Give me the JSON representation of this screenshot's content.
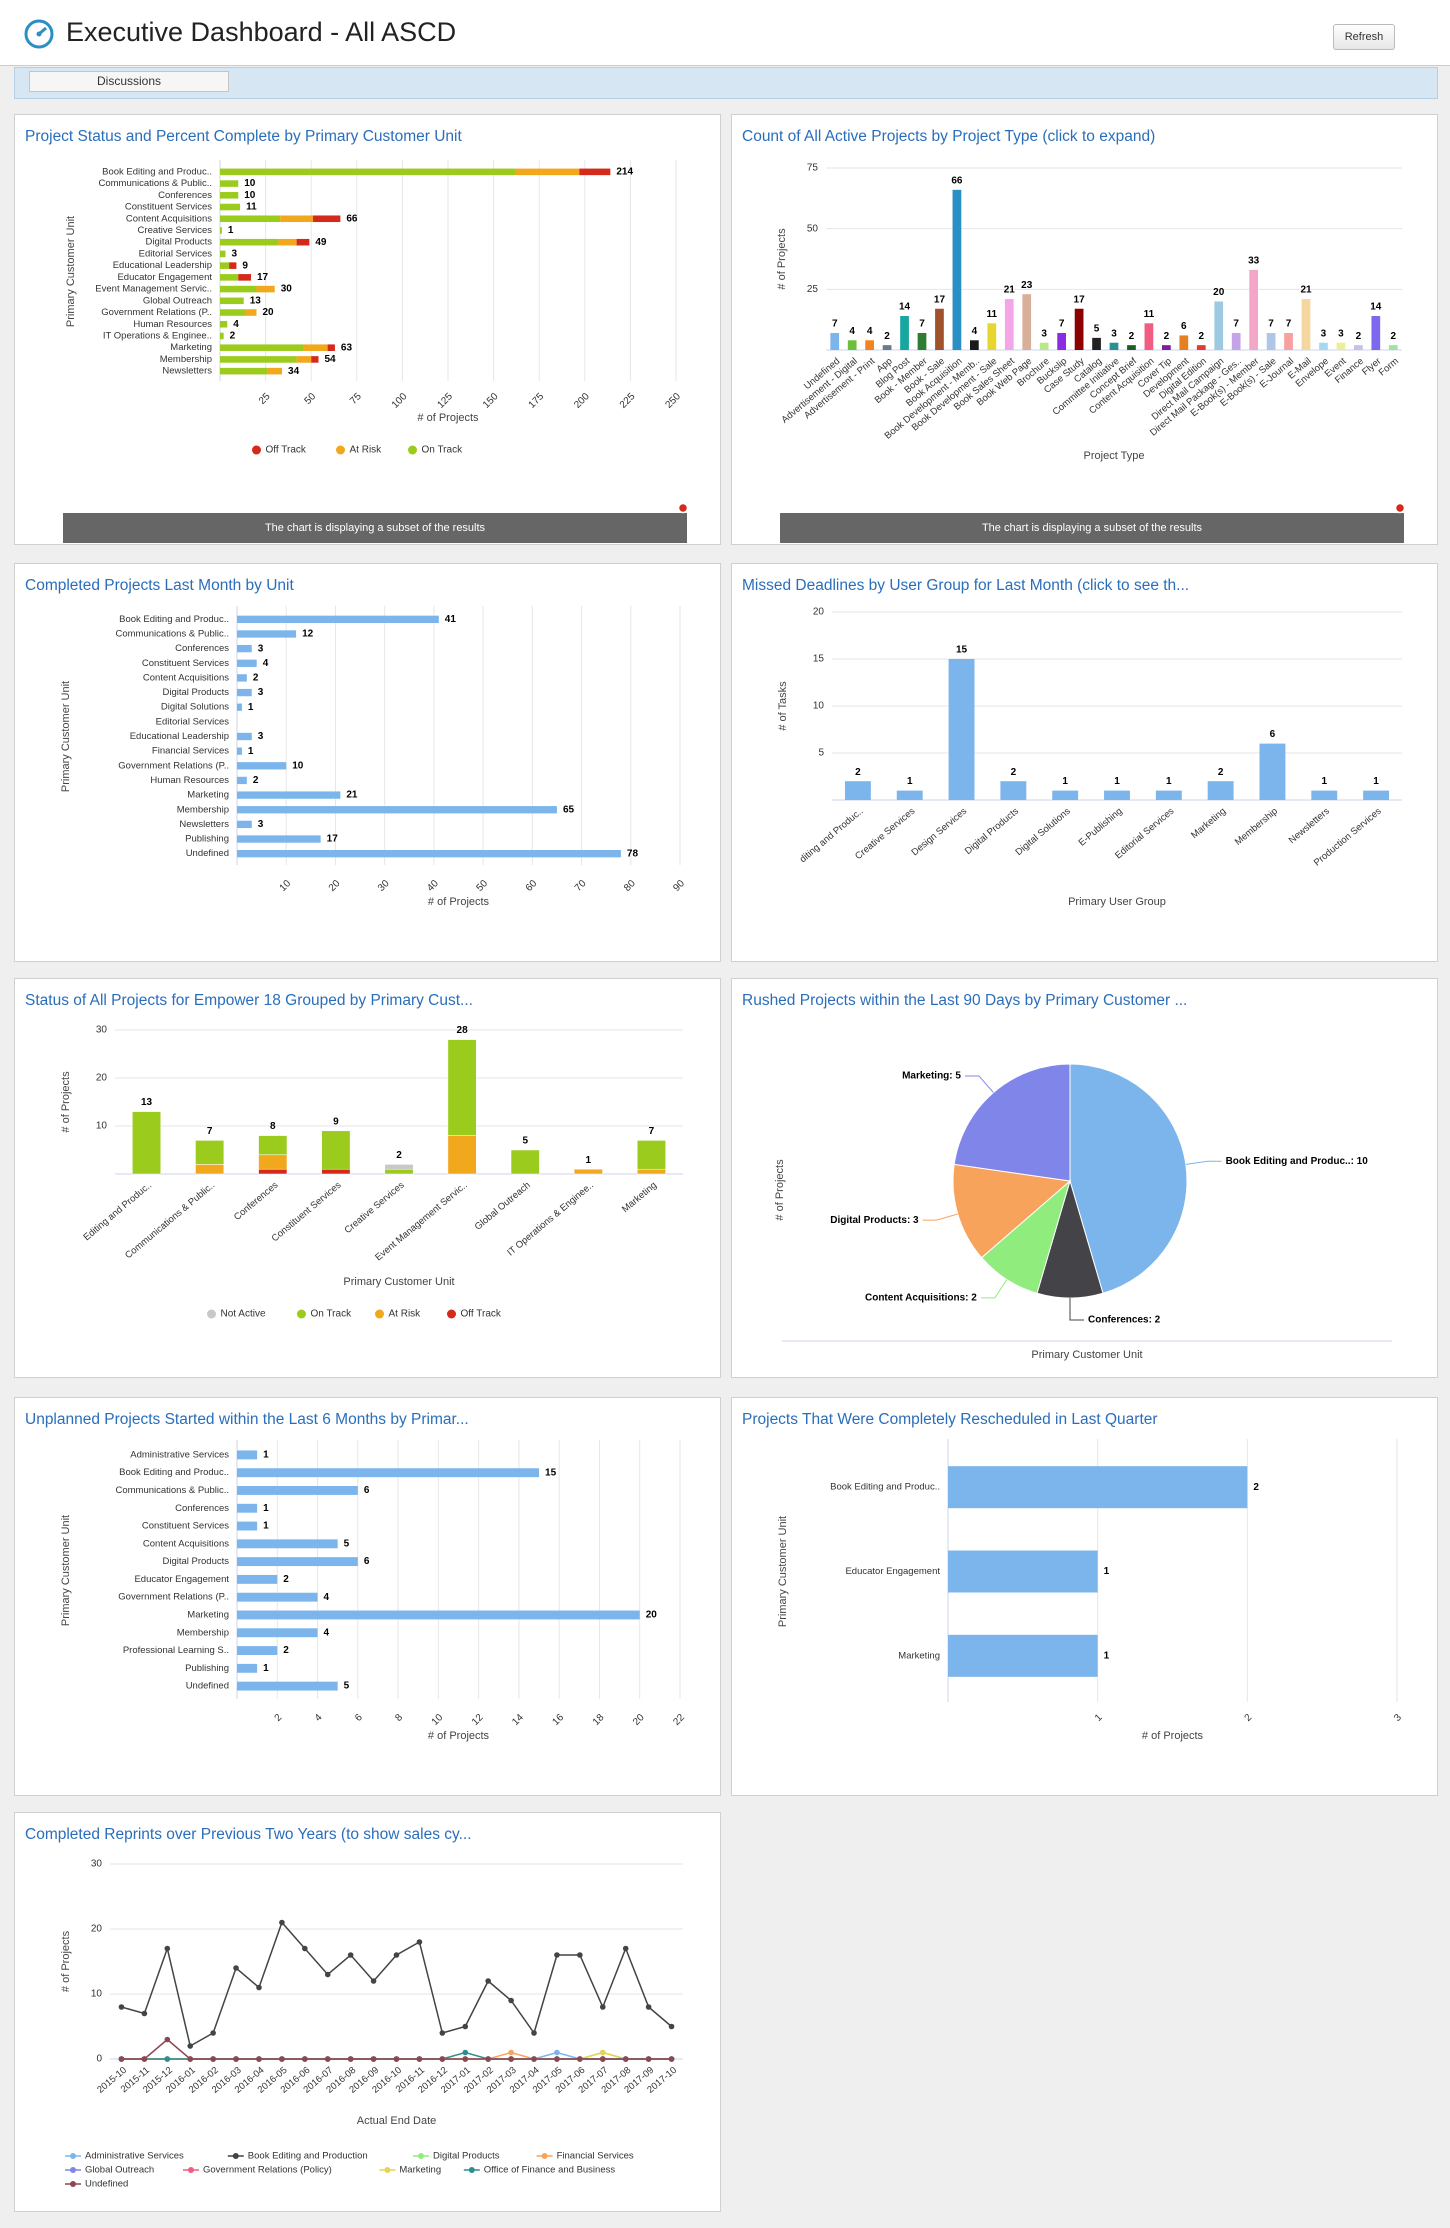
{
  "header": {
    "title": "Executive Dashboard - All ASCD",
    "refresh": "Refresh"
  },
  "tabs": [
    "Discussions"
  ],
  "chart_data": [
    {
      "type": "stacked_hbar",
      "title": "Project Status and Percent Complete by Primary Customer Unit",
      "categories": [
        "Book Editing and Produc..",
        "Communications & Public..",
        "Conferences",
        "Constituent Services",
        "Content Acquisitions",
        "Creative Services",
        "Digital Products",
        "Editorial Services",
        "Educational Leadership",
        "Educator Engagement",
        "Event Management Servic..",
        "Global Outreach",
        "Government Relations (P..",
        "Human Resources",
        "IT Operations & Enginee..",
        "Marketing",
        "Membership",
        "Newsletters"
      ],
      "series": [
        {
          "name": "Off Track",
          "color": "#d42a1c",
          "values": [
            17,
            0,
            0,
            0,
            15,
            0,
            7,
            0,
            4,
            7,
            0,
            0,
            0,
            0,
            0,
            4,
            4,
            0
          ]
        },
        {
          "name": "At Risk",
          "color": "#f2a81d",
          "values": [
            35,
            0,
            0,
            0,
            18,
            0,
            10,
            0,
            0,
            0,
            10,
            0,
            6,
            0,
            0,
            13,
            8,
            8
          ]
        },
        {
          "name": "On Track",
          "color": "#9bcc1d",
          "values": [
            162,
            10,
            10,
            11,
            33,
            1,
            32,
            3,
            5,
            10,
            20,
            13,
            14,
            4,
            2,
            46,
            42,
            26
          ]
        }
      ],
      "totals": [
        214,
        10,
        10,
        11,
        66,
        1,
        49,
        3,
        9,
        17,
        30,
        13,
        20,
        4,
        2,
        63,
        54,
        34
      ],
      "xlim": [
        0,
        250
      ],
      "xticks": [
        25,
        50,
        75,
        100,
        125,
        150,
        175,
        200,
        225,
        250
      ],
      "grid": true,
      "x_label": "# of Projects",
      "y_label": "Primary Customer Unit",
      "note": "The chart is displaying a subset of the results"
    },
    {
      "type": "column",
      "title": "Count of All Active Projects by Project Type (click to expand)",
      "categories": [
        "Undefined",
        "Advertisement - Digital",
        "Advertisement - Print",
        "App",
        "Blog Post",
        "Book - Member",
        "Book - Sale",
        "Book Acquisition",
        "Book Development - Memb..",
        "Book Development - Sale",
        "Book Sales Sheet",
        "Book Web Page",
        "Brochure",
        "Buckslip",
        "Case Study",
        "Catalog",
        "Committee Initiative",
        "Concept Brief",
        "Content Acquisition",
        "Cover Tip",
        "Development",
        "Digital Edition",
        "Direct Mail Campaign",
        "Direct Mail Package - Ges..",
        "E-Book(s) - Member",
        "E-Book(s) - Sale",
        "E-Journal",
        "E-Mail",
        "Envelope",
        "Event",
        "Finance",
        "Flyer",
        "Form"
      ],
      "values": [
        7,
        4,
        4,
        2,
        14,
        7,
        17,
        66,
        4,
        11,
        21,
        23,
        3,
        7,
        17,
        5,
        3,
        2,
        11,
        2,
        6,
        2,
        20,
        7,
        33,
        7,
        7,
        21,
        3,
        3,
        2,
        14,
        2
      ],
      "colors": [
        "#7cb5ec",
        "#6cbf3a",
        "#f5821f",
        "#6c7a89",
        "#17a6a0",
        "#2e7d32",
        "#a0522d",
        "#2a8fc4",
        "#1a1a1a",
        "#e8d630",
        "#f5a6e6",
        "#d8b09a",
        "#b8e986",
        "#8b2be2",
        "#8b0000",
        "#222222",
        "#2b908f",
        "#1b5e20",
        "#f15c80",
        "#7b1fa2",
        "#e67e22",
        "#e53935",
        "#9ecae1",
        "#c5a3e8",
        "#f4a6c6",
        "#aec7e8",
        "#f7a0a0",
        "#f5d6a0",
        "#a8d8f0",
        "#eeee99",
        "#c8c0e8",
        "#7b68ee",
        "#a1e3a1"
      ],
      "ylim": [
        0,
        75
      ],
      "yticks": [
        25,
        50,
        75
      ],
      "grid": true,
      "x_label": "Project Type",
      "y_label": "# of Projects",
      "note": "The chart is displaying a subset of the results"
    },
    {
      "type": "hbar",
      "title": "Completed Projects Last Month by Unit",
      "categories": [
        "Book Editing and Produc..",
        "Communications & Public..",
        "Conferences",
        "Constituent Services",
        "Content Acquisitions",
        "Digital Products",
        "Digital Solutions",
        "Editorial Services",
        "Educational Leadership",
        "Financial Services",
        "Government Relations (P..",
        "Human Resources",
        "Marketing",
        "Membership",
        "Newsletters",
        "Publishing",
        "Undefined"
      ],
      "values": [
        41,
        12,
        3,
        4,
        2,
        3,
        1,
        null,
        3,
        1,
        10,
        2,
        21,
        65,
        3,
        17,
        78
      ],
      "color": "#7cb5ec",
      "xlim": [
        0,
        90
      ],
      "xticks": [
        10,
        20,
        30,
        40,
        50,
        60,
        70,
        80,
        90
      ],
      "grid": true,
      "x_label": "# of Projects",
      "y_label": "Primary Customer Unit"
    },
    {
      "type": "column",
      "title": "Missed Deadlines by User Group for Last Month (click to see th...",
      "categories": [
        "diting and Produc..",
        "Creative Services",
        "Design Services",
        "Digital Products",
        "Digital Solutions",
        "E-Publishing",
        "Editorial Services",
        "Marketing",
        "Membership",
        "Newsletters",
        "Production Services"
      ],
      "values": [
        2,
        1,
        15,
        2,
        1,
        1,
        1,
        2,
        6,
        1,
        1
      ],
      "color": "#7cb5ec",
      "ylim": [
        0,
        20
      ],
      "yticks": [
        5,
        10,
        15,
        20
      ],
      "grid": true,
      "x_label": "Primary User Group",
      "y_label": "# of Tasks"
    },
    {
      "type": "stacked_column",
      "title": "Status of All Projects for Empower 18 Grouped by Primary Cust...",
      "categories": [
        "Editing and Produc..",
        "Communications & Public..",
        "Conferences",
        "Constituent Services",
        "Creative Services",
        "Event Management Servic..",
        "Global Outreach",
        "IT Operations & Enginee..",
        "Marketing"
      ],
      "series": [
        {
          "name": "Not Active",
          "color": "#c8c8c8",
          "values": [
            0,
            0,
            0,
            0,
            1,
            0,
            0,
            0,
            0
          ]
        },
        {
          "name": "On Track",
          "color": "#9bcc1d",
          "values": [
            13,
            5,
            4,
            8,
            1,
            20,
            5,
            0,
            6
          ]
        },
        {
          "name": "At Risk",
          "color": "#f2a81d",
          "values": [
            0,
            2,
            3,
            0,
            0,
            8,
            0,
            1,
            1
          ]
        },
        {
          "name": "Off Track",
          "color": "#d42a1c",
          "values": [
            0,
            0,
            1,
            1,
            0,
            0,
            0,
            0,
            0
          ]
        }
      ],
      "totals": [
        13,
        7,
        8,
        9,
        2,
        28,
        5,
        1,
        7
      ],
      "ylim": [
        0,
        30
      ],
      "yticks": [
        10,
        20,
        30
      ],
      "grid": true,
      "x_label": "Primary Customer Unit",
      "y_label": "# of Projects"
    },
    {
      "type": "pie",
      "title": "Rushed Projects within the Last 90 Days by Primary Customer ...",
      "values": [
        10,
        2,
        2,
        3,
        5
      ],
      "value_labels": [
        "Book Editing and Produc..: 10",
        "Conferences: 2",
        "Content Acquisitions: 2",
        "Digital Products: 3",
        "Marketing: 5"
      ],
      "colors": [
        "#7cb5ec",
        "#434348",
        "#90ed7d",
        "#f7a35c",
        "#8085e9"
      ],
      "x_label": "Primary Customer Unit",
      "y_label": "# of Projects"
    },
    {
      "type": "hbar",
      "title": "Unplanned Projects Started within the Last 6 Months by Primar...",
      "categories": [
        "Administrative Services",
        "Book Editing and Produc..",
        "Communications & Public..",
        "Conferences",
        "Constituent Services",
        "Content Acquisitions",
        "Digital Products",
        "Educator Engagement",
        "Government Relations (P..",
        "Marketing",
        "Membership",
        "Professional Learning S..",
        "Publishing",
        "Undefined"
      ],
      "values": [
        1,
        15,
        6,
        1,
        1,
        5,
        6,
        2,
        4,
        20,
        4,
        2,
        1,
        5
      ],
      "color": "#7cb5ec",
      "xlim": [
        0,
        22
      ],
      "xticks": [
        2,
        4,
        6,
        8,
        10,
        12,
        14,
        16,
        18,
        20,
        22
      ],
      "grid": true,
      "x_label": "# of Projects",
      "y_label": "Primary Customer Unit"
    },
    {
      "type": "hbar",
      "title": "Projects That Were Completely Rescheduled in Last Quarter",
      "categories": [
        "Book Editing and Produc..",
        "Educator Engagement",
        "Marketing"
      ],
      "values": [
        2,
        1,
        1
      ],
      "color": "#7cb5ec",
      "xlim": [
        0,
        3
      ],
      "xticks": [
        1,
        2,
        3
      ],
      "grid": true,
      "x_label": "# of Projects",
      "y_label": "Primary Customer Unit"
    },
    {
      "type": "line",
      "title": "Completed Reprints over Previous Two Years (to show sales cy...",
      "categories": [
        "2015-10",
        "2015-11",
        "2015-12",
        "2016-01",
        "2016-02",
        "2016-03",
        "2016-04",
        "2016-05",
        "2016-06",
        "2016-07",
        "2016-08",
        "2016-09",
        "2016-10",
        "2016-11",
        "2016-12",
        "2017-01",
        "2017-02",
        "2017-03",
        "2017-04",
        "2017-05",
        "2017-06",
        "2017-07",
        "2017-08",
        "2017-09",
        "2017-10"
      ],
      "series": [
        {
          "name": "Administrative Services",
          "color": "#7cb5ec",
          "values": [
            0,
            0,
            0,
            0,
            0,
            0,
            0,
            0,
            0,
            0,
            0,
            0,
            0,
            0,
            0,
            0,
            0,
            0,
            0,
            1,
            0,
            0,
            0,
            0,
            0
          ]
        },
        {
          "name": "Book Editing and Production",
          "color": "#434348",
          "values": [
            8,
            7,
            17,
            2,
            4,
            14,
            11,
            21,
            17,
            13,
            16,
            12,
            16,
            18,
            4,
            5,
            12,
            9,
            4,
            16,
            16,
            8,
            17,
            8,
            5
          ]
        },
        {
          "name": "Digital Products",
          "color": "#90ed7d",
          "values": [
            0,
            0,
            0,
            0,
            0,
            0,
            0,
            0,
            0,
            0,
            0,
            0,
            0,
            0,
            0,
            0,
            0,
            0,
            0,
            0,
            0,
            1,
            0,
            0,
            0
          ]
        },
        {
          "name": "Financial Services",
          "color": "#f7a35c",
          "values": [
            0,
            0,
            0,
            0,
            0,
            0,
            0,
            0,
            0,
            0,
            0,
            0,
            0,
            0,
            0,
            0,
            0,
            1,
            0,
            0,
            0,
            0,
            0,
            0,
            0
          ]
        },
        {
          "name": "Global Outreach",
          "color": "#8085e9",
          "values": [
            0,
            0,
            0,
            0,
            0,
            0,
            0,
            0,
            0,
            0,
            0,
            0,
            0,
            0,
            0,
            0,
            0,
            0,
            0,
            0,
            0,
            0,
            0,
            0,
            0
          ]
        },
        {
          "name": "Government Relations (Policy)",
          "color": "#f15c80",
          "values": [
            0,
            0,
            0,
            0,
            0,
            0,
            0,
            0,
            0,
            0,
            0,
            0,
            0,
            0,
            0,
            0,
            0,
            0,
            0,
            0,
            0,
            0,
            0,
            0,
            0
          ]
        },
        {
          "name": "Marketing",
          "color": "#e4d354",
          "values": [
            0,
            0,
            0,
            0,
            0,
            0,
            0,
            0,
            0,
            0,
            0,
            0,
            0,
            0,
            0,
            0,
            0,
            0,
            0,
            0,
            0,
            1,
            0,
            0,
            0
          ]
        },
        {
          "name": "Office of Finance and Business",
          "color": "#2b908f",
          "values": [
            0,
            0,
            0,
            0,
            0,
            0,
            0,
            0,
            0,
            0,
            0,
            0,
            0,
            0,
            0,
            1,
            0,
            0,
            0,
            0,
            0,
            0,
            0,
            0,
            0
          ]
        },
        {
          "name": "Undefined",
          "color": "#8d4653",
          "values": [
            0,
            0,
            3,
            0,
            0,
            0,
            0,
            0,
            0,
            0,
            0,
            0,
            0,
            0,
            0,
            0,
            0,
            0,
            0,
            0,
            0,
            0,
            0,
            0,
            0
          ]
        }
      ],
      "ylim": [
        0,
        30
      ],
      "yticks": [
        0,
        10,
        20,
        30
      ],
      "grid": true,
      "x_label": "Actual End Date",
      "y_label": "# of Projects"
    }
  ]
}
